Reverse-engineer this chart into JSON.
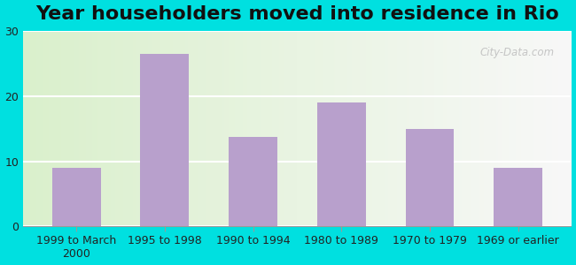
{
  "title": "Year householders moved into residence in Rio",
  "categories": [
    "1999 to March\n2000",
    "1995 to 1998",
    "1990 to 1994",
    "1980 to 1989",
    "1970 to 1979",
    "1969 or earlier"
  ],
  "values": [
    9.0,
    26.5,
    13.7,
    19.0,
    15.0,
    9.0
  ],
  "bar_color": "#b8a0cc",
  "ylim": [
    0,
    30
  ],
  "yticks": [
    0,
    10,
    20,
    30
  ],
  "background_outer": "#00e0e0",
  "grad_left": "#daf0cc",
  "grad_right": "#f8f8f8",
  "watermark": "City-Data.com",
  "title_fontsize": 16,
  "tick_fontsize": 9,
  "bar_width": 0.55
}
